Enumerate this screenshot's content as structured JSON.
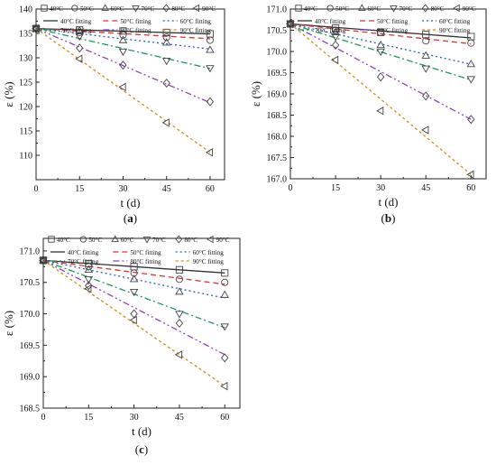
{
  "chart_data": [
    {
      "type": "scatter",
      "panel_label": "(a)",
      "panel_letter": "a",
      "xlabel": "t (d)",
      "ylabel": "ε (%)",
      "xlim": [
        0,
        65
      ],
      "ylim": [
        105,
        140
      ],
      "xticks": [
        0,
        15,
        30,
        45,
        60
      ],
      "yticks": [
        110,
        115,
        120,
        125,
        130,
        135,
        140
      ],
      "x": [
        0,
        15,
        30,
        45,
        60
      ],
      "grid": false,
      "legend_position": "top",
      "series": [
        {
          "name": "40°C",
          "marker": "square",
          "values": [
            136,
            135.7,
            135.5,
            135.2,
            134.9
          ],
          "fit": [
            136,
            134.9
          ],
          "fit_name": "40°C fitting",
          "color": "#333333",
          "dash": ""
        },
        {
          "name": "50°C",
          "marker": "circle",
          "values": [
            136,
            135.2,
            134.7,
            134.2,
            133.6
          ],
          "fit": [
            136,
            133.9
          ],
          "fit_name": "50°C fitting",
          "color": "#e03030",
          "dash": "6,4"
        },
        {
          "name": "60°C",
          "marker": "triangle-up",
          "values": [
            136,
            135.6,
            133.6,
            133.1,
            131.6
          ],
          "fit": [
            136,
            131.8
          ],
          "fit_name": "60°C fitting",
          "color": "#2060c0",
          "dash": "2,3"
        },
        {
          "name": "70°C",
          "marker": "triangle-down",
          "values": [
            136,
            134.4,
            131.3,
            129.4,
            127.9
          ],
          "fit": [
            136,
            127.8
          ],
          "fit_name": "70°C fitting",
          "color": "#1a9a5a",
          "dash": "7,3,2,3"
        },
        {
          "name": "80°C",
          "marker": "diamond",
          "values": [
            136,
            132.0,
            128.5,
            124.8,
            121.0
          ],
          "fit": [
            136,
            120.8
          ],
          "fit_name": "80°C fitting",
          "color": "#9040c0",
          "dash": "7,3,2,3,2,3"
        },
        {
          "name": "90°C",
          "marker": "triangle-left",
          "values": [
            136,
            129.8,
            124.0,
            116.7,
            110.6
          ],
          "fit": [
            136,
            110.6
          ],
          "fit_name": "90°C fitting",
          "color": "#d09010",
          "dash": "3,3"
        }
      ]
    },
    {
      "type": "scatter",
      "panel_label": "(b)",
      "panel_letter": "b",
      "xlabel": "t (d)",
      "ylabel": "ε (%)",
      "xlim": [
        0,
        65
      ],
      "ylim": [
        167.0,
        171.0
      ],
      "xticks": [
        0,
        15,
        30,
        45,
        60
      ],
      "yticks": [
        167.0,
        167.5,
        168.0,
        168.5,
        169.0,
        169.5,
        170.0,
        170.5,
        171.0
      ],
      "x": [
        0,
        15,
        30,
        45,
        60
      ],
      "grid": false,
      "legend_position": "top",
      "series": [
        {
          "name": "40°C",
          "marker": "square",
          "values": [
            170.65,
            170.55,
            170.45,
            170.4,
            170.35
          ],
          "fit": [
            170.65,
            170.32
          ],
          "fit_name": "40°C fitting",
          "color": "#333333",
          "dash": ""
        },
        {
          "name": "50°C",
          "marker": "circle",
          "values": [
            170.65,
            170.5,
            170.45,
            170.25,
            170.2
          ],
          "fit": [
            170.65,
            170.18
          ],
          "fit_name": "50°C fitting",
          "color": "#e03030",
          "dash": "6,4"
        },
        {
          "name": "60°C",
          "marker": "triangle-up",
          "values": [
            170.65,
            170.45,
            170.15,
            169.9,
            169.7
          ],
          "fit": [
            170.65,
            169.7
          ],
          "fit_name": "60°C fitting",
          "color": "#2060c0",
          "dash": "2,3"
        },
        {
          "name": "70°C",
          "marker": "triangle-down",
          "values": [
            170.65,
            170.35,
            170.0,
            169.6,
            169.35
          ],
          "fit": [
            170.65,
            169.33
          ],
          "fit_name": "70°C fitting",
          "color": "#1a9a5a",
          "dash": "7,3,2,3"
        },
        {
          "name": "80°C",
          "marker": "diamond",
          "values": [
            170.65,
            170.15,
            169.4,
            168.95,
            168.4
          ],
          "fit": [
            170.65,
            168.4
          ],
          "fit_name": "80°C fitting",
          "color": "#9040c0",
          "dash": "7,3,2,3,2,3"
        },
        {
          "name": "90°C",
          "marker": "triangle-left",
          "values": [
            170.65,
            169.8,
            168.6,
            168.15,
            167.1
          ],
          "fit": [
            170.65,
            167.1
          ],
          "fit_name": "90°C fitting",
          "color": "#d09010",
          "dash": "3,3"
        }
      ]
    },
    {
      "type": "scatter",
      "panel_label": "(c)",
      "panel_letter": "c",
      "xlabel": "t (d)",
      "ylabel": "ε (%)",
      "xlim": [
        0,
        65
      ],
      "ylim": [
        168.5,
        171.2
      ],
      "xticks": [
        0,
        15,
        30,
        45,
        60
      ],
      "yticks": [
        168.5,
        169.0,
        169.5,
        170.0,
        170.5,
        171.0
      ],
      "x": [
        0,
        15,
        30,
        45,
        60
      ],
      "grid": false,
      "legend_position": "top",
      "series": [
        {
          "name": "40°C",
          "marker": "square",
          "values": [
            170.85,
            170.8,
            170.75,
            170.7,
            170.65
          ],
          "fit": [
            170.85,
            170.65
          ],
          "fit_name": "40°C fitting",
          "color": "#333333",
          "dash": ""
        },
        {
          "name": "50°C",
          "marker": "circle",
          "values": [
            170.85,
            170.75,
            170.65,
            170.55,
            170.5
          ],
          "fit": [
            170.85,
            170.47
          ],
          "fit_name": "50°C fitting",
          "color": "#e03030",
          "dash": "6,4"
        },
        {
          "name": "60°C",
          "marker": "triangle-up",
          "values": [
            170.85,
            170.7,
            170.55,
            170.35,
            170.3
          ],
          "fit": [
            170.85,
            170.25
          ],
          "fit_name": "60°C fitting",
          "color": "#2060c0",
          "dash": "2,3"
        },
        {
          "name": "70°C",
          "marker": "triangle-down",
          "values": [
            170.85,
            170.55,
            170.35,
            170.0,
            169.8
          ],
          "fit": [
            170.85,
            169.78
          ],
          "fit_name": "70°C fitting",
          "color": "#1a9a5a",
          "dash": "7,3,2,3"
        },
        {
          "name": "80°C",
          "marker": "diamond",
          "values": [
            170.85,
            170.45,
            170.0,
            169.85,
            169.3
          ],
          "fit": [
            170.85,
            169.35
          ],
          "fit_name": "80°C fitting",
          "color": "#9040c0",
          "dash": "7,3,2,3,2,3"
        },
        {
          "name": "90°C",
          "marker": "triangle-left",
          "values": [
            170.85,
            170.4,
            169.9,
            169.35,
            168.85
          ],
          "fit": [
            170.85,
            168.85
          ],
          "fit_name": "90°C fitting",
          "color": "#d09010",
          "dash": "3,3"
        }
      ]
    }
  ]
}
